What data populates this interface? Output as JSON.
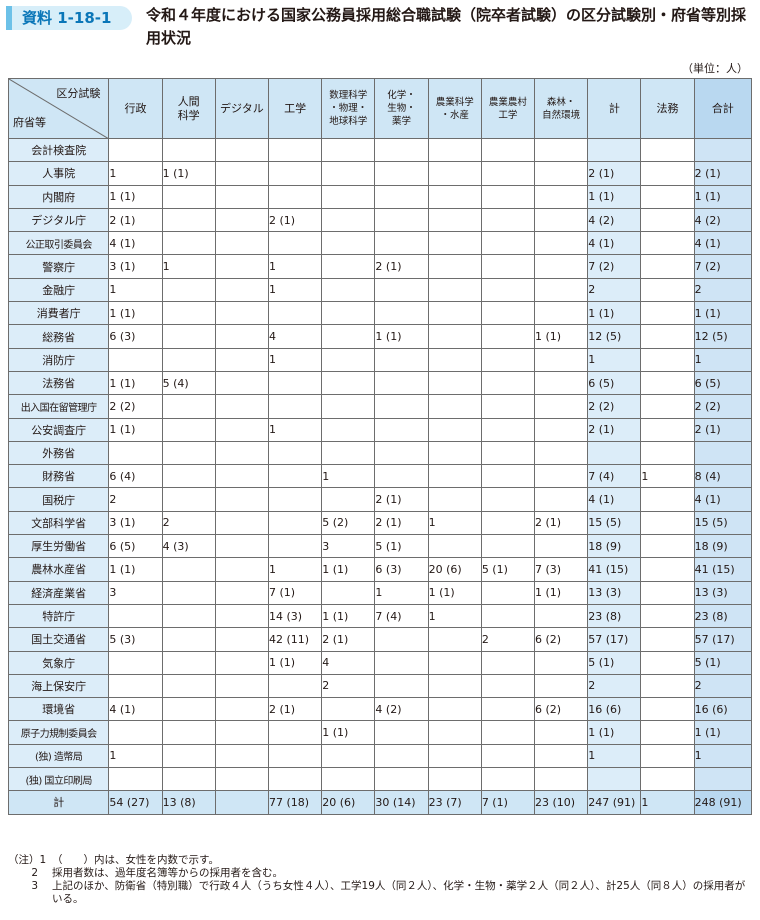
{
  "header": {
    "badge": "資料 1-18-1",
    "title": "令和４年度における国家公務員採用総合職試験（院卒者試験）の区分試験別・府省等別採用状況",
    "unit": "（単位：人）"
  },
  "table": {
    "corner_top": "区分試験",
    "corner_bottom": "府省等",
    "columns": [
      "行政",
      "人間\n科学",
      "デジタル",
      "工学",
      "数理科学\n・物理・\n地球科学",
      "化学・\n生物・\n薬学",
      "農業科学\n・水産",
      "農業農村\n工学",
      "森林・\n自然環境",
      "計",
      "法務",
      "合計"
    ],
    "rows": [
      {
        "name": "会計検査院",
        "cells": [
          "",
          "",
          "",
          "",
          "",
          "",
          "",
          "",
          "",
          "",
          "",
          ""
        ]
      },
      {
        "name": "人事院",
        "cells": [
          "1",
          "1 (1)",
          "",
          "",
          "",
          "",
          "",
          "",
          "",
          "2 (1)",
          "",
          "2 (1)"
        ]
      },
      {
        "name": "内閣府",
        "cells": [
          "1 (1)",
          "",
          "",
          "",
          "",
          "",
          "",
          "",
          "",
          "1 (1)",
          "",
          "1 (1)"
        ]
      },
      {
        "name": "デジタル庁",
        "cells": [
          "2 (1)",
          "",
          "",
          "2 (1)",
          "",
          "",
          "",
          "",
          "",
          "4 (2)",
          "",
          "4 (2)"
        ]
      },
      {
        "name": "公正取引委員会",
        "cells": [
          "4 (1)",
          "",
          "",
          "",
          "",
          "",
          "",
          "",
          "",
          "4 (1)",
          "",
          "4 (1)"
        ]
      },
      {
        "name": "警察庁",
        "cells": [
          "3 (1)",
          "1",
          "",
          "1",
          "",
          "2 (1)",
          "",
          "",
          "",
          "7 (2)",
          "",
          "7 (2)"
        ]
      },
      {
        "name": "金融庁",
        "cells": [
          "1",
          "",
          "",
          "1",
          "",
          "",
          "",
          "",
          "",
          "2",
          "",
          "2"
        ]
      },
      {
        "name": "消費者庁",
        "cells": [
          "1 (1)",
          "",
          "",
          "",
          "",
          "",
          "",
          "",
          "",
          "1 (1)",
          "",
          "1 (1)"
        ]
      },
      {
        "name": "総務省",
        "cells": [
          "6 (3)",
          "",
          "",
          "4",
          "",
          "1 (1)",
          "",
          "",
          "1 (1)",
          "12 (5)",
          "",
          "12 (5)"
        ]
      },
      {
        "name": "消防庁",
        "cells": [
          "",
          "",
          "",
          "1",
          "",
          "",
          "",
          "",
          "",
          "1",
          "",
          "1"
        ]
      },
      {
        "name": "法務省",
        "cells": [
          "1 (1)",
          "5 (4)",
          "",
          "",
          "",
          "",
          "",
          "",
          "",
          "6 (5)",
          "",
          "6 (5)"
        ]
      },
      {
        "name": "出入国在留管理庁",
        "cells": [
          "2 (2)",
          "",
          "",
          "",
          "",
          "",
          "",
          "",
          "",
          "2 (2)",
          "",
          "2 (2)"
        ]
      },
      {
        "name": "公安調査庁",
        "cells": [
          "1 (1)",
          "",
          "",
          "1",
          "",
          "",
          "",
          "",
          "",
          "2 (1)",
          "",
          "2 (1)"
        ]
      },
      {
        "name": "外務省",
        "cells": [
          "",
          "",
          "",
          "",
          "",
          "",
          "",
          "",
          "",
          "",
          "",
          ""
        ]
      },
      {
        "name": "財務省",
        "cells": [
          "6 (4)",
          "",
          "",
          "",
          "1",
          "",
          "",
          "",
          "",
          "7 (4)",
          "1",
          "8 (4)"
        ]
      },
      {
        "name": "国税庁",
        "cells": [
          "2",
          "",
          "",
          "",
          "",
          "2 (1)",
          "",
          "",
          "",
          "4 (1)",
          "",
          "4 (1)"
        ]
      },
      {
        "name": "文部科学省",
        "cells": [
          "3 (1)",
          "2",
          "",
          "",
          "5 (2)",
          "2 (1)",
          "1",
          "",
          "2 (1)",
          "15 (5)",
          "",
          "15 (5)"
        ]
      },
      {
        "name": "厚生労働省",
        "cells": [
          "6 (5)",
          "4 (3)",
          "",
          "",
          "3",
          "5 (1)",
          "",
          "",
          "",
          "18 (9)",
          "",
          "18 (9)"
        ]
      },
      {
        "name": "農林水産省",
        "cells": [
          "1 (1)",
          "",
          "",
          "1",
          "1 (1)",
          "6 (3)",
          "20 (6)",
          "5 (1)",
          "7 (3)",
          "41 (15)",
          "",
          "41 (15)"
        ]
      },
      {
        "name": "経済産業省",
        "cells": [
          "3",
          "",
          "",
          "7 (1)",
          "",
          "1",
          "1 (1)",
          "",
          "1 (1)",
          "13 (3)",
          "",
          "13 (3)"
        ]
      },
      {
        "name": "特許庁",
        "cells": [
          "",
          "",
          "",
          "14 (3)",
          "1 (1)",
          "7 (4)",
          "1",
          "",
          "",
          "23 (8)",
          "",
          "23 (8)"
        ]
      },
      {
        "name": "国土交通省",
        "cells": [
          "5 (3)",
          "",
          "",
          "42 (11)",
          "2 (1)",
          "",
          "",
          "2",
          "6 (2)",
          "57 (17)",
          "",
          "57 (17)"
        ]
      },
      {
        "name": "気象庁",
        "cells": [
          "",
          "",
          "",
          "1 (1)",
          "4",
          "",
          "",
          "",
          "",
          "5 (1)",
          "",
          "5 (1)"
        ]
      },
      {
        "name": "海上保安庁",
        "cells": [
          "",
          "",
          "",
          "",
          "2",
          "",
          "",
          "",
          "",
          "2",
          "",
          "2"
        ]
      },
      {
        "name": "環境省",
        "cells": [
          "4 (1)",
          "",
          "",
          "2 (1)",
          "",
          "4 (2)",
          "",
          "",
          "6 (2)",
          "16 (6)",
          "",
          "16 (6)"
        ]
      },
      {
        "name": "原子力規制委員会",
        "cells": [
          "",
          "",
          "",
          "",
          "1 (1)",
          "",
          "",
          "",
          "",
          "1 (1)",
          "",
          "1 (1)"
        ]
      },
      {
        "name": "(独) 造幣局",
        "cells": [
          "1",
          "",
          "",
          "",
          "",
          "",
          "",
          "",
          "",
          "1",
          "",
          "1"
        ]
      },
      {
        "name": "(独) 国立印刷局",
        "cells": [
          "",
          "",
          "",
          "",
          "",
          "",
          "",
          "",
          "",
          "",
          "",
          ""
        ]
      }
    ],
    "total": {
      "name": "計",
      "cells": [
        "54 (27)",
        "13 (8)",
        "",
        "77 (18)",
        "20 (6)",
        "30 (14)",
        "23 (7)",
        "7 (1)",
        "23 (10)",
        "247 (91)",
        "1",
        "248 (91)"
      ]
    }
  },
  "notes": [
    {
      "tag": "（注）1",
      "text": "（　　）内は、女性を内数で示す。"
    },
    {
      "tag": "2",
      "text": "採用者数は、過年度名簿等からの採用者を含む。"
    },
    {
      "tag": "3",
      "text": "上記のほか、防衛省（特別職）で行政４人（うち女性４人）、工学19人（同２人）、化学・生物・薬学２人（同２人）、計25人（同８人）の採用者がいる。"
    }
  ]
}
